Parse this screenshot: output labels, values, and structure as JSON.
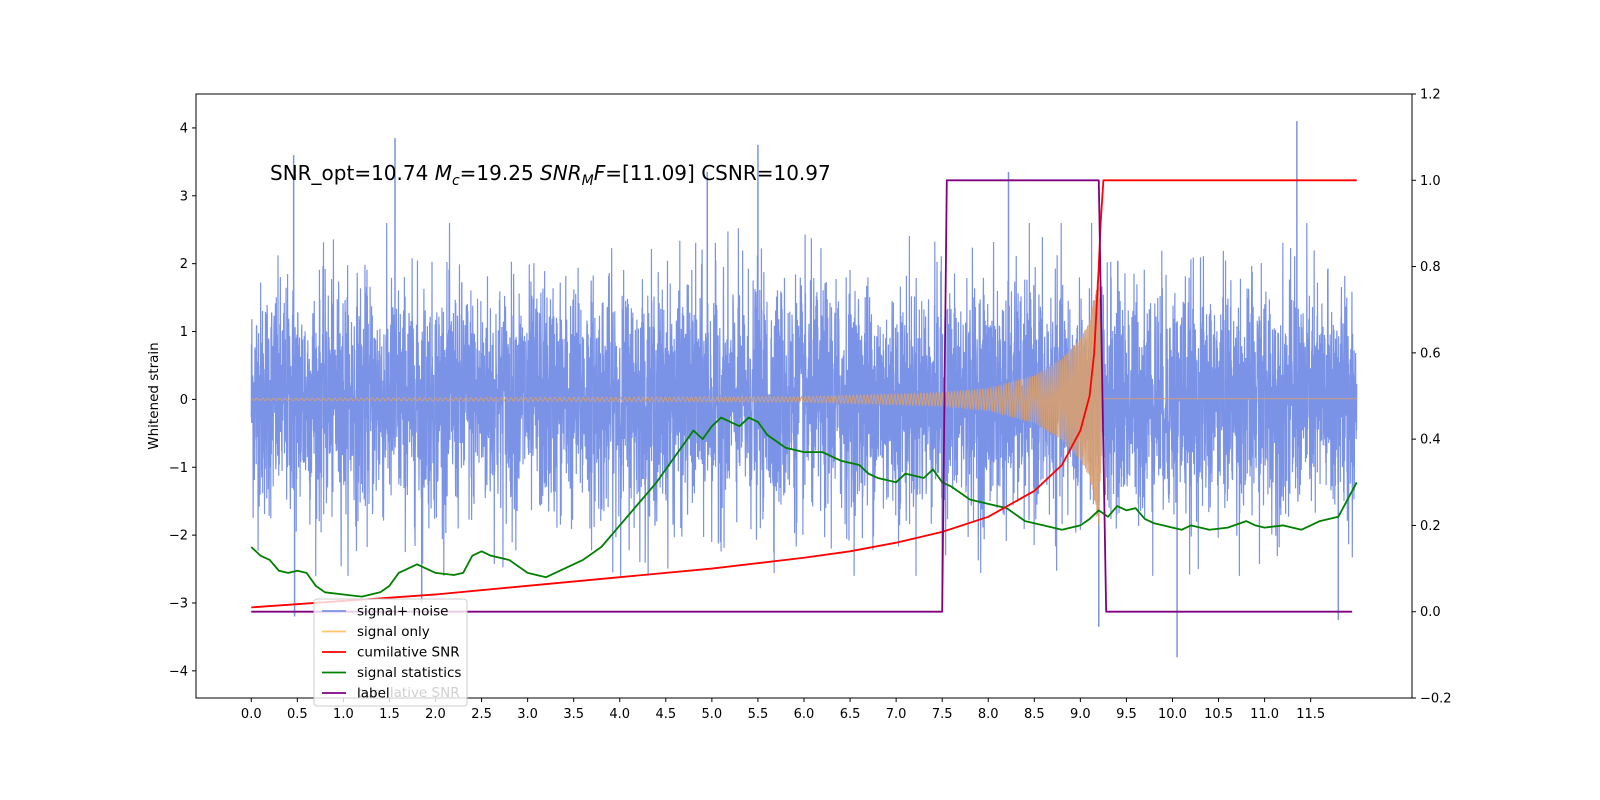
{
  "chart_data": {
    "type": "line",
    "title": "",
    "xlabel": "",
    "ylabel": "Whitened strain",
    "xlim": [
      -0.6,
      12.6
    ],
    "ylim": [
      -4.4,
      4.5
    ],
    "y2lim": [
      -0.2,
      1.2
    ],
    "x_ticks": [
      "0.0",
      "0.5",
      "1.0",
      "1.5",
      "2.0",
      "2.5",
      "3.0",
      "3.5",
      "4.0",
      "4.5",
      "5.0",
      "5.5",
      "6.0",
      "6.5",
      "7.0",
      "7.5",
      "8.0",
      "8.5",
      "9.0",
      "9.5",
      "10.0",
      "10.5",
      "11.0",
      "11.5"
    ],
    "x_tick_values": [
      0.0,
      0.5,
      1.0,
      1.5,
      2.0,
      2.5,
      3.0,
      3.5,
      4.0,
      4.5,
      5.0,
      5.5,
      6.0,
      6.5,
      7.0,
      7.5,
      8.0,
      8.5,
      9.0,
      9.5,
      10.0,
      10.5,
      11.0,
      11.5
    ],
    "y_ticks": [
      "4",
      "3",
      "2",
      "1",
      "0",
      "−1",
      "−2",
      "−3",
      "−4"
    ],
    "y_tick_values": [
      4,
      3,
      2,
      1,
      0,
      -1,
      -2,
      -3,
      -4
    ],
    "y2_ticks": [
      "1.2",
      "1.0",
      "0.8",
      "0.6",
      "0.4",
      "0.2",
      "0.0",
      "−0.2"
    ],
    "y2_tick_values": [
      1.2,
      1.0,
      0.8,
      0.6,
      0.4,
      0.2,
      0.0,
      -0.2
    ],
    "annotation": {
      "part1": "SNR_opt=10.74 ",
      "mc_sym": "M",
      "mc_sub": "c",
      "part2": "=19.25  ",
      "snr_sym": "SNR",
      "snr_sub": "M",
      "f_sym": "F",
      "part3": "=[11.09] CSNR=10.97"
    },
    "legend": {
      "position": "lower-left",
      "entries": [
        {
          "label": "signal+ noise",
          "color": "#7b93e6"
        },
        {
          "label": "signal only",
          "color": "#ffc46b"
        },
        {
          "label": "cumilative SNR",
          "color": "#ff0000"
        },
        {
          "label": "signal statistics",
          "color": "#008000"
        },
        {
          "label": "label",
          "color": "#800080"
        }
      ],
      "ghost_text": "cumilative SNR"
    },
    "series": [
      {
        "name": "signal+ noise",
        "axis": "left",
        "color": "#7b93e6",
        "description": "broadband whitened noise, roughly ±2.4 with spikes up to 4.1 and down to −3.8",
        "spikes": [
          [
            0.46,
            3.6
          ],
          [
            0.47,
            -3.2
          ],
          [
            1.56,
            3.85
          ],
          [
            1.85,
            -3.0
          ],
          [
            4.95,
            3.35
          ],
          [
            5.5,
            3.75
          ],
          [
            7.5,
            -2.95
          ],
          [
            8.22,
            3.35
          ],
          [
            9.2,
            -3.35
          ],
          [
            10.05,
            -3.8
          ],
          [
            11.35,
            4.1
          ],
          [
            11.8,
            -3.25
          ]
        ]
      },
      {
        "name": "signal only",
        "axis": "left",
        "color": "#d8a070",
        "description": "chirp with amplitude growing until merger near t=9.2 s",
        "envelope": [
          [
            0.0,
            0.015
          ],
          [
            6.0,
            0.04
          ],
          [
            7.5,
            0.1
          ],
          [
            8.0,
            0.16
          ],
          [
            8.5,
            0.35
          ],
          [
            8.8,
            0.6
          ],
          [
            9.0,
            0.9
          ],
          [
            9.1,
            1.15
          ],
          [
            9.2,
            1.9
          ],
          [
            9.25,
            0.01
          ],
          [
            12.0,
            0.01
          ]
        ]
      },
      {
        "name": "cumilative SNR",
        "axis": "right",
        "color": "#ff0000",
        "points": [
          [
            0.0,
            0.01
          ],
          [
            1.0,
            0.025
          ],
          [
            2.0,
            0.04
          ],
          [
            3.0,
            0.06
          ],
          [
            4.0,
            0.08
          ],
          [
            5.0,
            0.1
          ],
          [
            6.0,
            0.125
          ],
          [
            6.5,
            0.14
          ],
          [
            7.0,
            0.16
          ],
          [
            7.5,
            0.185
          ],
          [
            8.0,
            0.22
          ],
          [
            8.5,
            0.28
          ],
          [
            8.8,
            0.34
          ],
          [
            9.0,
            0.42
          ],
          [
            9.1,
            0.5
          ],
          [
            9.15,
            0.6
          ],
          [
            9.2,
            0.8
          ],
          [
            9.22,
            0.9
          ],
          [
            9.25,
            1.0
          ],
          [
            12.0,
            1.0
          ]
        ]
      },
      {
        "name": "signal statistics",
        "axis": "right",
        "color": "#008000",
        "points": [
          [
            0.0,
            0.15
          ],
          [
            0.1,
            0.13
          ],
          [
            0.2,
            0.12
          ],
          [
            0.3,
            0.095
          ],
          [
            0.4,
            0.09
          ],
          [
            0.5,
            0.095
          ],
          [
            0.6,
            0.09
          ],
          [
            0.7,
            0.06
          ],
          [
            0.8,
            0.045
          ],
          [
            1.0,
            0.04
          ],
          [
            1.2,
            0.035
          ],
          [
            1.4,
            0.045
          ],
          [
            1.5,
            0.06
          ],
          [
            1.6,
            0.09
          ],
          [
            1.8,
            0.11
          ],
          [
            2.0,
            0.09
          ],
          [
            2.2,
            0.085
          ],
          [
            2.3,
            0.09
          ],
          [
            2.4,
            0.13
          ],
          [
            2.5,
            0.14
          ],
          [
            2.6,
            0.13
          ],
          [
            2.8,
            0.12
          ],
          [
            3.0,
            0.09
          ],
          [
            3.2,
            0.08
          ],
          [
            3.4,
            0.1
          ],
          [
            3.6,
            0.12
          ],
          [
            3.8,
            0.15
          ],
          [
            4.0,
            0.2
          ],
          [
            4.2,
            0.25
          ],
          [
            4.4,
            0.3
          ],
          [
            4.6,
            0.36
          ],
          [
            4.8,
            0.42
          ],
          [
            4.9,
            0.4
          ],
          [
            5.0,
            0.43
          ],
          [
            5.1,
            0.45
          ],
          [
            5.2,
            0.44
          ],
          [
            5.3,
            0.43
          ],
          [
            5.4,
            0.45
          ],
          [
            5.5,
            0.44
          ],
          [
            5.6,
            0.41
          ],
          [
            5.8,
            0.38
          ],
          [
            6.0,
            0.37
          ],
          [
            6.2,
            0.37
          ],
          [
            6.3,
            0.36
          ],
          [
            6.4,
            0.35
          ],
          [
            6.5,
            0.345
          ],
          [
            6.6,
            0.34
          ],
          [
            6.7,
            0.32
          ],
          [
            6.8,
            0.31
          ],
          [
            7.0,
            0.3
          ],
          [
            7.1,
            0.32
          ],
          [
            7.3,
            0.31
          ],
          [
            7.4,
            0.33
          ],
          [
            7.5,
            0.3
          ],
          [
            7.6,
            0.29
          ],
          [
            7.8,
            0.26
          ],
          [
            8.0,
            0.25
          ],
          [
            8.2,
            0.24
          ],
          [
            8.4,
            0.21
          ],
          [
            8.6,
            0.2
          ],
          [
            8.8,
            0.19
          ],
          [
            9.0,
            0.2
          ],
          [
            9.1,
            0.215
          ],
          [
            9.2,
            0.235
          ],
          [
            9.3,
            0.22
          ],
          [
            9.4,
            0.245
          ],
          [
            9.5,
            0.235
          ],
          [
            9.6,
            0.24
          ],
          [
            9.7,
            0.215
          ],
          [
            9.8,
            0.205
          ],
          [
            9.9,
            0.2
          ],
          [
            10.0,
            0.195
          ],
          [
            10.1,
            0.19
          ],
          [
            10.2,
            0.2
          ],
          [
            10.4,
            0.19
          ],
          [
            10.6,
            0.195
          ],
          [
            10.8,
            0.21
          ],
          [
            10.9,
            0.2
          ],
          [
            11.0,
            0.195
          ],
          [
            11.2,
            0.2
          ],
          [
            11.4,
            0.19
          ],
          [
            11.5,
            0.2
          ],
          [
            11.6,
            0.21
          ],
          [
            11.8,
            0.22
          ],
          [
            11.9,
            0.26
          ],
          [
            12.0,
            0.3
          ]
        ]
      },
      {
        "name": "label",
        "axis": "right",
        "color": "#800080",
        "points": [
          [
            0.0,
            0.0
          ],
          [
            7.5,
            0.0
          ],
          [
            7.55,
            1.0
          ],
          [
            9.2,
            1.0
          ],
          [
            9.28,
            0.0
          ],
          [
            11.95,
            0.0
          ]
        ]
      }
    ]
  }
}
